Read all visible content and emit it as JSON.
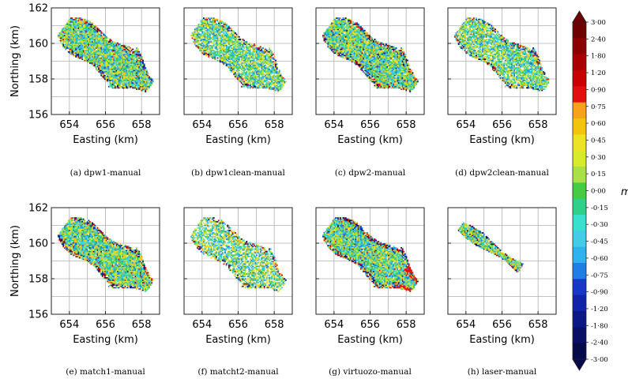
{
  "figure": {
    "unit_label": "m",
    "colorbar": {
      "labels": [
        "3·00",
        "2·40",
        "1·80",
        "1·20",
        "0·90",
        "0·75",
        "0·60",
        "0·45",
        "0·30",
        "0·15",
        "0·00",
        "-0·15",
        "-0·30",
        "-0·45",
        "-0·60",
        "-0·75",
        "-0·90",
        "-1·20",
        "-1·80",
        "-2·40",
        "-3·00"
      ],
      "colors": [
        "#6e0000",
        "#8c0000",
        "#aa0000",
        "#c80000",
        "#e30f0f",
        "#f7a21a",
        "#f2c40e",
        "#eee227",
        "#d8ea2c",
        "#a9e045",
        "#45cc42",
        "#2fd08a",
        "#38e0cf",
        "#43cce8",
        "#2fb2ee",
        "#1f7fe6",
        "#1737c8",
        "#0f24a8",
        "#0a1888",
        "#070f66",
        "#050a4a"
      ]
    }
  },
  "chart_data": [
    {
      "type": "heatmap",
      "caption": "(a) dpw1-manual",
      "xlabel": "Easting (km)",
      "ylabel": "Northing (km)",
      "xticks": [
        "654",
        "656",
        "658"
      ],
      "yticks": [
        "162",
        "160",
        "158",
        "156"
      ],
      "xlim": [
        653,
        659
      ],
      "ylim": [
        156,
        162
      ],
      "xtick_values": [
        654,
        656,
        658
      ],
      "ytick_values": [
        162,
        160,
        158,
        156
      ]
    },
    {
      "type": "heatmap",
      "caption": "(b) dpw1clean-manual",
      "xlabel": "Easting (km)",
      "ylabel": "",
      "xticks": [
        "654",
        "656",
        "658"
      ],
      "yticks": [],
      "xlim": [
        653,
        659
      ],
      "ylim": [
        156,
        162
      ],
      "xtick_values": [
        654,
        656,
        658
      ],
      "ytick_values": [
        162,
        160,
        158,
        156
      ]
    },
    {
      "type": "heatmap",
      "caption": "(c) dpw2-manual",
      "xlabel": "Easting (km)",
      "ylabel": "",
      "xticks": [
        "654",
        "656",
        "658"
      ],
      "yticks": [],
      "xlim": [
        653,
        659
      ],
      "ylim": [
        156,
        162
      ],
      "xtick_values": [
        654,
        656,
        658
      ],
      "ytick_values": [
        162,
        160,
        158,
        156
      ]
    },
    {
      "type": "heatmap",
      "caption": "(d) dpw2clean-manual",
      "xlabel": "Easting (km)",
      "ylabel": "",
      "xticks": [
        "654",
        "656",
        "658"
      ],
      "yticks": [],
      "xlim": [
        653,
        659
      ],
      "ylim": [
        156,
        162
      ],
      "xtick_values": [
        654,
        656,
        658
      ],
      "ytick_values": [
        162,
        160,
        158,
        156
      ]
    },
    {
      "type": "heatmap",
      "caption": "(e) match1-manual",
      "xlabel": "Easting (km)",
      "ylabel": "Northing (km)",
      "xticks": [
        "654",
        "656",
        "658"
      ],
      "yticks": [
        "162",
        "160",
        "158",
        "156"
      ],
      "xlim": [
        653,
        659
      ],
      "ylim": [
        156,
        162
      ],
      "xtick_values": [
        654,
        656,
        658
      ],
      "ytick_values": [
        162,
        160,
        158,
        156
      ]
    },
    {
      "type": "heatmap",
      "caption": "(f) matcht2-manual",
      "xlabel": "Easting (km)",
      "ylabel": "",
      "xticks": [
        "654",
        "656",
        "658"
      ],
      "yticks": [],
      "xlim": [
        653,
        659
      ],
      "ylim": [
        156,
        162
      ],
      "xtick_values": [
        654,
        656,
        658
      ],
      "ytick_values": [
        162,
        160,
        158,
        156
      ]
    },
    {
      "type": "heatmap",
      "caption": "(g) virtuozo-manual",
      "xlabel": "Easting (km)",
      "ylabel": "",
      "xticks": [
        "654",
        "656",
        "658"
      ],
      "yticks": [],
      "xlim": [
        653,
        659
      ],
      "ylim": [
        156,
        162
      ],
      "xtick_values": [
        654,
        656,
        658
      ],
      "ytick_values": [
        162,
        160,
        158,
        156
      ]
    },
    {
      "type": "heatmap",
      "caption": "(h) laser-manual",
      "xlabel": "Easting (km)",
      "ylabel": "",
      "xticks": [
        "654",
        "656",
        "658"
      ],
      "yticks": [],
      "xlim": [
        653,
        659
      ],
      "ylim": [
        156,
        162
      ],
      "xtick_values": [
        654,
        656,
        658
      ],
      "ytick_values": [
        162,
        160,
        158,
        156
      ]
    }
  ]
}
